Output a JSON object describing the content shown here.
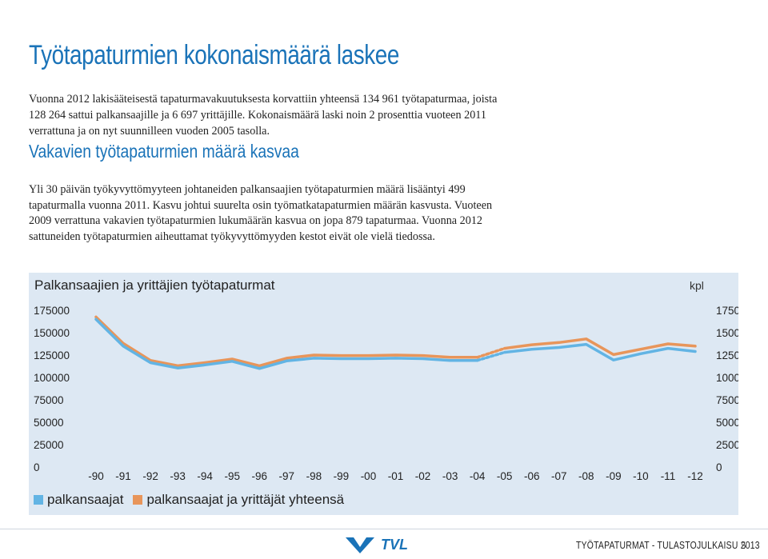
{
  "article": {
    "heading": "Työtapaturmien kokonaismäärä laskee",
    "paragraph1": "Vuonna 2012 lakisääteisestä tapaturmavakuutuksesta korvattiin yhteensä 134 961 työtapaturmaa, joista 128 264 sattui palkansaajille ja 6 697 yrittäjille. Kokonaismäärä laski noin 2 prosenttia vuoteen 2011 verrattuna ja on nyt suunnilleen vuoden 2005 tasolla.",
    "subheading": "Vakavien työtapaturmien määrä kasvaa",
    "paragraph2": "Yli 30 päivän työkyvyttömyyteen johtaneiden palkansaajien työtapaturmien määrä lisääntyi 499 tapaturmalla vuonna 2011. Kasvu johtui suurelta osin työmatkatapaturmien määrän kasvusta. Vuoteen 2009 verrattuna vakavien työtapaturmien lukumäärän kasvua on jopa 879 tapaturmaa. Vuonna 2012 sattuneiden työtapaturmien aiheuttamat työkyvyttömyyden kestot eivät ole vielä tiedossa."
  },
  "chart_data": {
    "type": "line",
    "title": "Palkansaajien ja yrittäjien työtapaturmat",
    "unit": "kpl",
    "x": [
      "-90",
      "-91",
      "-92",
      "-93",
      "-94",
      "-95",
      "-96",
      "-97",
      "-98",
      "-99",
      "-00",
      "-01",
      "-02",
      "-03",
      "-04",
      "-05",
      "-06",
      "-07",
      "-08",
      "-09",
      "-10",
      "-11",
      "-12"
    ],
    "yticks": [
      175000,
      150000,
      125000,
      100000,
      75000,
      50000,
      25000,
      0
    ],
    "ylim": [
      0,
      175000
    ],
    "break_after_index": 14,
    "series": [
      {
        "name": "palkansaajat",
        "color": "#62b4e4",
        "values": [
          165000,
          135000,
          116500,
          110500,
          114000,
          118000,
          110000,
          118500,
          121500,
          121000,
          121000,
          121500,
          121000,
          119000,
          119000,
          128000,
          131500,
          133500,
          137000,
          119500,
          126500,
          132500,
          129000
        ]
      },
      {
        "name": "palkansaajat ja yrittäjät yhteensä",
        "color": "#e8955a",
        "values": [
          167500,
          138000,
          119000,
          113000,
          116500,
          120500,
          113000,
          121500,
          125000,
          124500,
          124500,
          125000,
          124500,
          122500,
          122500,
          132500,
          136500,
          139000,
          143000,
          125500,
          131500,
          137500,
          135000
        ]
      }
    ],
    "grid": false,
    "legend_position": "bottom-left"
  },
  "colors": {
    "accent": "#1a73b8",
    "chart_background": "#dde8f3"
  },
  "footer": {
    "logo_text": "TVL",
    "publication": "TYÖTAPATURMAT - TULASTOJULKAISU 2013",
    "page_number": "5"
  }
}
